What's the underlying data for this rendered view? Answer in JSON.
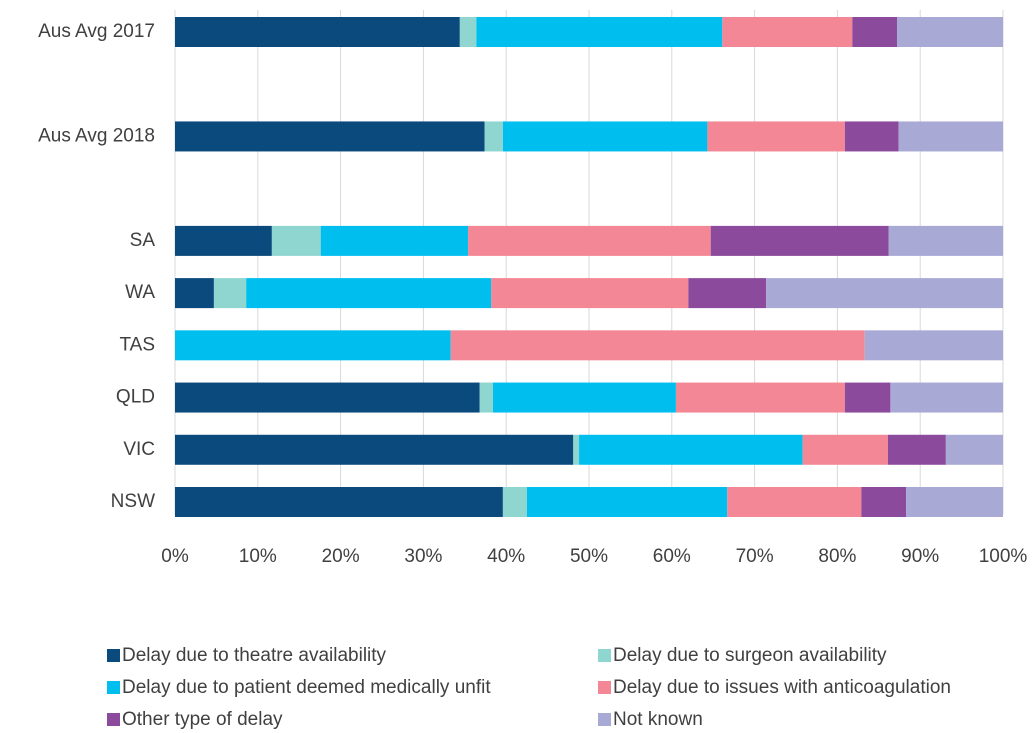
{
  "chart_data": {
    "type": "stacked_barh",
    "categories": [
      "Aus Avg 2017",
      null,
      "Aus Avg 2018",
      null,
      "SA",
      "WA",
      "TAS",
      "QLD",
      "VIC",
      "NSW"
    ],
    "series": [
      {
        "name": "Delay due to theatre availability",
        "color": "#0b4a7d",
        "values": [
          34.4,
          null,
          37.4,
          null,
          11.7,
          4.7,
          0,
          36.8,
          48.1,
          39.6
        ]
      },
      {
        "name": "Delay due to surgeon availability",
        "color": "#8fd6d0",
        "values": [
          2.0,
          null,
          2.2,
          null,
          5.9,
          3.9,
          0,
          1.6,
          0.7,
          2.9
        ]
      },
      {
        "name": "Delay due to patient deemed medically unfit",
        "color": "#00bfef",
        "values": [
          29.7,
          null,
          24.7,
          null,
          17.8,
          29.6,
          33.3,
          22.1,
          27.0,
          24.2
        ]
      },
      {
        "name": "Delay due to issues with anticoagulation",
        "color": "#f48795",
        "values": [
          15.7,
          null,
          16.6,
          null,
          29.3,
          23.8,
          50.0,
          20.4,
          10.3,
          16.2
        ]
      },
      {
        "name": "Other type of delay",
        "color": "#8b4a9b",
        "values": [
          5.4,
          null,
          6.5,
          null,
          21.5,
          9.4,
          0,
          5.5,
          7.0,
          5.4
        ]
      },
      {
        "name": "Not known",
        "color": "#a9a9d6",
        "values": [
          12.8,
          null,
          12.6,
          null,
          13.8,
          28.6,
          16.7,
          13.6,
          6.9,
          11.7
        ]
      }
    ],
    "xlim": [
      0,
      100
    ],
    "xticks": [
      {
        "value": 0,
        "label": "0%"
      },
      {
        "value": 10,
        "label": "10%"
      },
      {
        "value": 20,
        "label": "20%"
      },
      {
        "value": 30,
        "label": "30%"
      },
      {
        "value": 40,
        "label": "40%"
      },
      {
        "value": 50,
        "label": "50%"
      },
      {
        "value": 60,
        "label": "60%"
      },
      {
        "value": 70,
        "label": "70%"
      },
      {
        "value": 80,
        "label": "80%"
      },
      {
        "value": 90,
        "label": "90%"
      },
      {
        "value": 100,
        "label": "100%"
      }
    ],
    "grid": true
  }
}
